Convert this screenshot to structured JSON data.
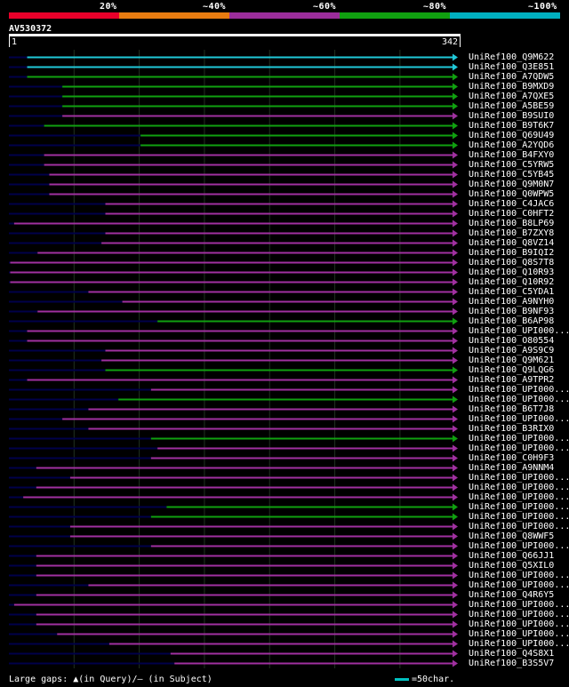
{
  "legend": {
    "labels": [
      "20%",
      "~40%",
      "~60%",
      "~80%",
      "~100%"
    ],
    "colors": [
      "#e8002a",
      "#e87c10",
      "#9b2d9b",
      "#10a010",
      "#00b0c0"
    ]
  },
  "query": {
    "id": "AV530372",
    "start": "1",
    "end": "342",
    "length": 342
  },
  "colors": {
    "cyan": "#20c8d8",
    "green": "#10a010",
    "purple": "#a030a0",
    "navy": "#00004a",
    "gridline": "#203020"
  },
  "hits": [
    {
      "name": "UniRef100_Q9M622",
      "c": "cyan",
      "s": 15,
      "e": 342
    },
    {
      "name": "UniRef100_Q3E851",
      "c": "cyan",
      "s": 15,
      "e": 342
    },
    {
      "name": "UniRef100_A7QDW5",
      "c": "green",
      "s": 15,
      "e": 342
    },
    {
      "name": "UniRef100_B9MXD9",
      "c": "green",
      "s": 42,
      "e": 342
    },
    {
      "name": "UniRef100_A7QXE5",
      "c": "green",
      "s": 42,
      "e": 342
    },
    {
      "name": "UniRef100_A5BE59",
      "c": "green",
      "s": 42,
      "e": 342
    },
    {
      "name": "UniRef100_B9SUI0",
      "c": "purple",
      "s": 42,
      "e": 342
    },
    {
      "name": "UniRef100_B9T6K7",
      "c": "green",
      "s": 28,
      "e": 342
    },
    {
      "name": "UniRef100_Q69U49",
      "c": "green",
      "s": 102,
      "e": 342
    },
    {
      "name": "UniRef100_A2YQD6",
      "c": "green",
      "s": 102,
      "e": 342
    },
    {
      "name": "UniRef100_B4FXY0",
      "c": "purple",
      "s": 28,
      "e": 342
    },
    {
      "name": "UniRef100_C5YRW5",
      "c": "purple",
      "s": 28,
      "e": 342
    },
    {
      "name": "UniRef100_C5YB45",
      "c": "purple",
      "s": 32,
      "e": 342
    },
    {
      "name": "UniRef100_Q9M0N7",
      "c": "purple",
      "s": 32,
      "e": 342
    },
    {
      "name": "UniRef100_Q0WPW5",
      "c": "purple",
      "s": 32,
      "e": 342
    },
    {
      "name": "UniRef100_C4JAC6",
      "c": "purple",
      "s": 75,
      "e": 342
    },
    {
      "name": "UniRef100_C0HFT2",
      "c": "purple",
      "s": 75,
      "e": 342
    },
    {
      "name": "UniRef100_B8LP69",
      "c": "purple",
      "s": 5,
      "e": 342
    },
    {
      "name": "UniRef100_B7ZXY8",
      "c": "purple",
      "s": 75,
      "e": 342
    },
    {
      "name": "UniRef100_Q8VZ14",
      "c": "purple",
      "s": 72,
      "e": 342
    },
    {
      "name": "UniRef100_B9IQI2",
      "c": "purple",
      "s": 23,
      "e": 342
    },
    {
      "name": "UniRef100_Q8S7T8",
      "c": "purple",
      "s": 2,
      "e": 342
    },
    {
      "name": "UniRef100_Q10R93",
      "c": "purple",
      "s": 2,
      "e": 342
    },
    {
      "name": "UniRef100_Q10R92",
      "c": "purple",
      "s": 2,
      "e": 342
    },
    {
      "name": "UniRef100_C5YDA1",
      "c": "purple",
      "s": 62,
      "e": 342
    },
    {
      "name": "UniRef100_A9NYH0",
      "c": "purple",
      "s": 88,
      "e": 342
    },
    {
      "name": "UniRef100_B9NF93",
      "c": "purple",
      "s": 23,
      "e": 342
    },
    {
      "name": "UniRef100_B6AP98",
      "c": "green",
      "s": 115,
      "e": 342
    },
    {
      "name": "UniRef100_UPI000...",
      "c": "purple",
      "s": 15,
      "e": 342
    },
    {
      "name": "UniRef100_O80554",
      "c": "purple",
      "s": 15,
      "e": 342
    },
    {
      "name": "UniRef100_A9S9C9",
      "c": "purple",
      "s": 75,
      "e": 342
    },
    {
      "name": "UniRef100_Q9M621",
      "c": "purple",
      "s": 72,
      "e": 342
    },
    {
      "name": "UniRef100_Q9LQG6",
      "c": "green",
      "s": 75,
      "e": 342
    },
    {
      "name": "UniRef100_A9TPR2",
      "c": "purple",
      "s": 15,
      "e": 342
    },
    {
      "name": "UniRef100_UPI000...",
      "c": "purple",
      "s": 110,
      "e": 342
    },
    {
      "name": "UniRef100_UPI000...",
      "c": "green",
      "s": 85,
      "e": 342
    },
    {
      "name": "UniRef100_B6T7J8",
      "c": "purple",
      "s": 62,
      "e": 342
    },
    {
      "name": "UniRef100_UPI000...",
      "c": "purple",
      "s": 42,
      "e": 342
    },
    {
      "name": "UniRef100_B3RIX0",
      "c": "purple",
      "s": 62,
      "e": 342
    },
    {
      "name": "UniRef100_UPI000...",
      "c": "green",
      "s": 110,
      "e": 342
    },
    {
      "name": "UniRef100_UPI000...",
      "c": "purple",
      "s": 115,
      "e": 342
    },
    {
      "name": "UniRef100_C0H9F3",
      "c": "purple",
      "s": 110,
      "e": 342
    },
    {
      "name": "UniRef100_A9NNM4",
      "c": "purple",
      "s": 22,
      "e": 342
    },
    {
      "name": "UniRef100_UPI000...",
      "c": "purple",
      "s": 48,
      "e": 342
    },
    {
      "name": "UniRef100_UPI000...",
      "c": "purple",
      "s": 22,
      "e": 342
    },
    {
      "name": "UniRef100_UPI000...",
      "c": "purple",
      "s": 12,
      "e": 342
    },
    {
      "name": "UniRef100_UPI000...",
      "c": "green",
      "s": 122,
      "e": 342
    },
    {
      "name": "UniRef100_UPI000...",
      "c": "green",
      "s": 110,
      "e": 342
    },
    {
      "name": "UniRef100_UPI000...",
      "c": "purple",
      "s": 48,
      "e": 342
    },
    {
      "name": "UniRef100_Q8WWF5",
      "c": "purple",
      "s": 48,
      "e": 342
    },
    {
      "name": "UniRef100_UPI000...",
      "c": "purple",
      "s": 110,
      "e": 342
    },
    {
      "name": "UniRef100_Q66JJ1",
      "c": "purple",
      "s": 22,
      "e": 342
    },
    {
      "name": "UniRef100_Q5XIL0",
      "c": "purple",
      "s": 22,
      "e": 342
    },
    {
      "name": "UniRef100_UPI000...",
      "c": "purple",
      "s": 22,
      "e": 342
    },
    {
      "name": "UniRef100_UPI000...",
      "c": "purple",
      "s": 62,
      "e": 342
    },
    {
      "name": "UniRef100_Q4R6Y5",
      "c": "purple",
      "s": 22,
      "e": 342
    },
    {
      "name": "UniRef100_UPI000...",
      "c": "purple",
      "s": 5,
      "e": 342
    },
    {
      "name": "UniRef100_UPI000...",
      "c": "purple",
      "s": 22,
      "e": 342
    },
    {
      "name": "UniRef100_UPI000...",
      "c": "purple",
      "s": 22,
      "e": 342
    },
    {
      "name": "UniRef100_UPI000...",
      "c": "purple",
      "s": 38,
      "e": 342
    },
    {
      "name": "UniRef100_UPI000...",
      "c": "purple",
      "s": 78,
      "e": 342
    },
    {
      "name": "UniRef100_Q4S8X1",
      "c": "purple",
      "s": 125,
      "e": 342
    },
    {
      "name": "UniRef100_B3S5V7",
      "c": "purple",
      "s": 128,
      "e": 342
    }
  ],
  "footer": {
    "legend_text": "Large gaps: ▲(in Query)/– (in Subject)",
    "scale_text": "=50char."
  }
}
